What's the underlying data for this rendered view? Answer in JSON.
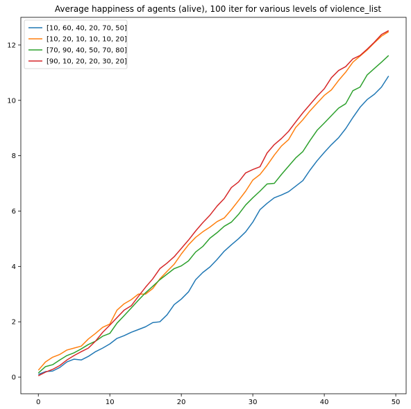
{
  "chart_data": {
    "type": "line",
    "title": "Average happiness of agents (alive), 100 iter for various levels of violence_list",
    "xlabel": "",
    "ylabel": "",
    "xlim": [
      -2.45,
      51.45
    ],
    "ylim": [
      -0.6,
      13.0
    ],
    "xticks": [
      0,
      10,
      20,
      30,
      40,
      50
    ],
    "yticks": [
      0,
      2,
      4,
      6,
      8,
      10,
      12
    ],
    "legend_position": "top-left",
    "grid": false,
    "x": [
      0,
      1,
      2,
      3,
      4,
      5,
      6,
      7,
      8,
      9,
      10,
      11,
      12,
      13,
      14,
      15,
      16,
      17,
      18,
      19,
      20,
      21,
      22,
      23,
      24,
      25,
      26,
      27,
      28,
      29,
      30,
      31,
      32,
      33,
      34,
      35,
      36,
      37,
      38,
      39,
      40,
      41,
      42,
      43,
      44,
      45,
      46,
      47,
      48,
      49
    ],
    "series": [
      {
        "name": "[10, 60, 40, 20, 70, 50]",
        "color": "#1f77b4",
        "values": [
          0.1,
          0.2,
          0.22,
          0.35,
          0.55,
          0.65,
          0.62,
          0.75,
          0.92,
          1.05,
          1.2,
          1.4,
          1.5,
          1.62,
          1.72,
          1.82,
          1.97,
          2.0,
          2.25,
          2.62,
          2.82,
          3.08,
          3.52,
          3.78,
          3.98,
          4.25,
          4.55,
          4.78,
          5.0,
          5.25,
          5.6,
          6.05,
          6.28,
          6.48,
          6.58,
          6.7,
          6.9,
          7.1,
          7.48,
          7.82,
          8.12,
          8.4,
          8.65,
          8.98,
          9.38,
          9.75,
          10.03,
          10.22,
          10.48,
          10.88
        ]
      },
      {
        "name": "[10, 20, 10, 10, 10, 20]",
        "color": "#ff7f0e",
        "values": [
          0.25,
          0.55,
          0.72,
          0.82,
          0.98,
          1.05,
          1.12,
          1.38,
          1.58,
          1.8,
          1.92,
          2.42,
          2.65,
          2.8,
          3.0,
          3.0,
          3.2,
          3.55,
          3.82,
          4.08,
          4.45,
          4.78,
          5.05,
          5.25,
          5.42,
          5.62,
          5.75,
          6.05,
          6.38,
          6.72,
          7.12,
          7.32,
          7.65,
          8.02,
          8.35,
          8.58,
          9.02,
          9.3,
          9.62,
          9.9,
          10.18,
          10.38,
          10.72,
          11.02,
          11.38,
          11.6,
          11.82,
          12.08,
          12.32,
          12.48
        ]
      },
      {
        "name": "[70, 90, 40, 50, 70, 80]",
        "color": "#2ca02c",
        "values": [
          0.15,
          0.38,
          0.45,
          0.62,
          0.78,
          0.88,
          1.02,
          1.18,
          1.3,
          1.48,
          1.58,
          1.95,
          2.22,
          2.5,
          2.78,
          3.05,
          3.28,
          3.52,
          3.72,
          3.92,
          4.02,
          4.2,
          4.52,
          4.72,
          5.02,
          5.22,
          5.45,
          5.6,
          5.88,
          6.22,
          6.48,
          6.72,
          6.98,
          7.0,
          7.32,
          7.62,
          7.92,
          8.15,
          8.55,
          8.92,
          9.18,
          9.45,
          9.72,
          9.88,
          10.35,
          10.48,
          10.92,
          11.15,
          11.38,
          11.62
        ]
      },
      {
        "name": "[90, 10, 20, 20, 30, 20]",
        "color": "#d62728",
        "values": [
          0.05,
          0.18,
          0.28,
          0.42,
          0.62,
          0.78,
          0.92,
          1.05,
          1.3,
          1.62,
          1.88,
          2.15,
          2.42,
          2.58,
          2.92,
          3.25,
          3.55,
          3.92,
          4.12,
          4.35,
          4.65,
          4.95,
          5.28,
          5.58,
          5.85,
          6.18,
          6.45,
          6.85,
          7.05,
          7.38,
          7.5,
          7.6,
          8.1,
          8.4,
          8.62,
          8.88,
          9.22,
          9.55,
          9.85,
          10.15,
          10.42,
          10.82,
          11.08,
          11.22,
          11.5,
          11.62,
          11.85,
          12.1,
          12.38,
          12.52
        ]
      }
    ]
  }
}
